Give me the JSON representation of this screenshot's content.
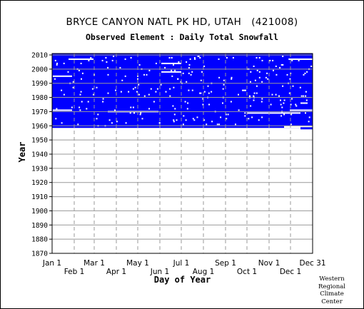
{
  "header": {
    "title": "BRYCE CANYON NATL PK HD, UTAH   (421008)",
    "subtitle": "Observed Element : Daily Total Snowfall"
  },
  "credit": {
    "line1": "Western",
    "line2": "Regional",
    "line3": "Climate",
    "line4": "Center"
  },
  "chart_data": {
    "type": "heatmap",
    "title": "BRYCE CANYON NATL PK HD, UTAH   (421008)",
    "subtitle": "Observed Element : Daily Total Snowfall",
    "xlabel": "Day of Year",
    "ylabel": "Year",
    "xlim": [
      1,
      366
    ],
    "ylim": [
      1870,
      2011
    ],
    "x_ticks_top_row": [
      "Jan 1",
      "Mar 1",
      "May 1",
      "Jul 1",
      "Sep 1",
      "Nov 1",
      "Dec 31"
    ],
    "x_ticks_bottom_row": [
      "Feb 1",
      "Apr 1",
      "Jun 1",
      "Aug 1",
      "Oct 1",
      "Dec 1"
    ],
    "y_ticks": [
      "2010",
      "2000",
      "1990",
      "1980",
      "1970",
      "1960",
      "1950",
      "1940",
      "1930",
      "1920",
      "1910",
      "1900",
      "1890",
      "1880",
      "1870"
    ],
    "grid": true,
    "fill_color": "#0000ff",
    "record_start_year": 1959,
    "record_end_year": 2010,
    "series": [
      {
        "values": "observed daily snowfall present for most days 1959–2010"
      }
    ]
  }
}
